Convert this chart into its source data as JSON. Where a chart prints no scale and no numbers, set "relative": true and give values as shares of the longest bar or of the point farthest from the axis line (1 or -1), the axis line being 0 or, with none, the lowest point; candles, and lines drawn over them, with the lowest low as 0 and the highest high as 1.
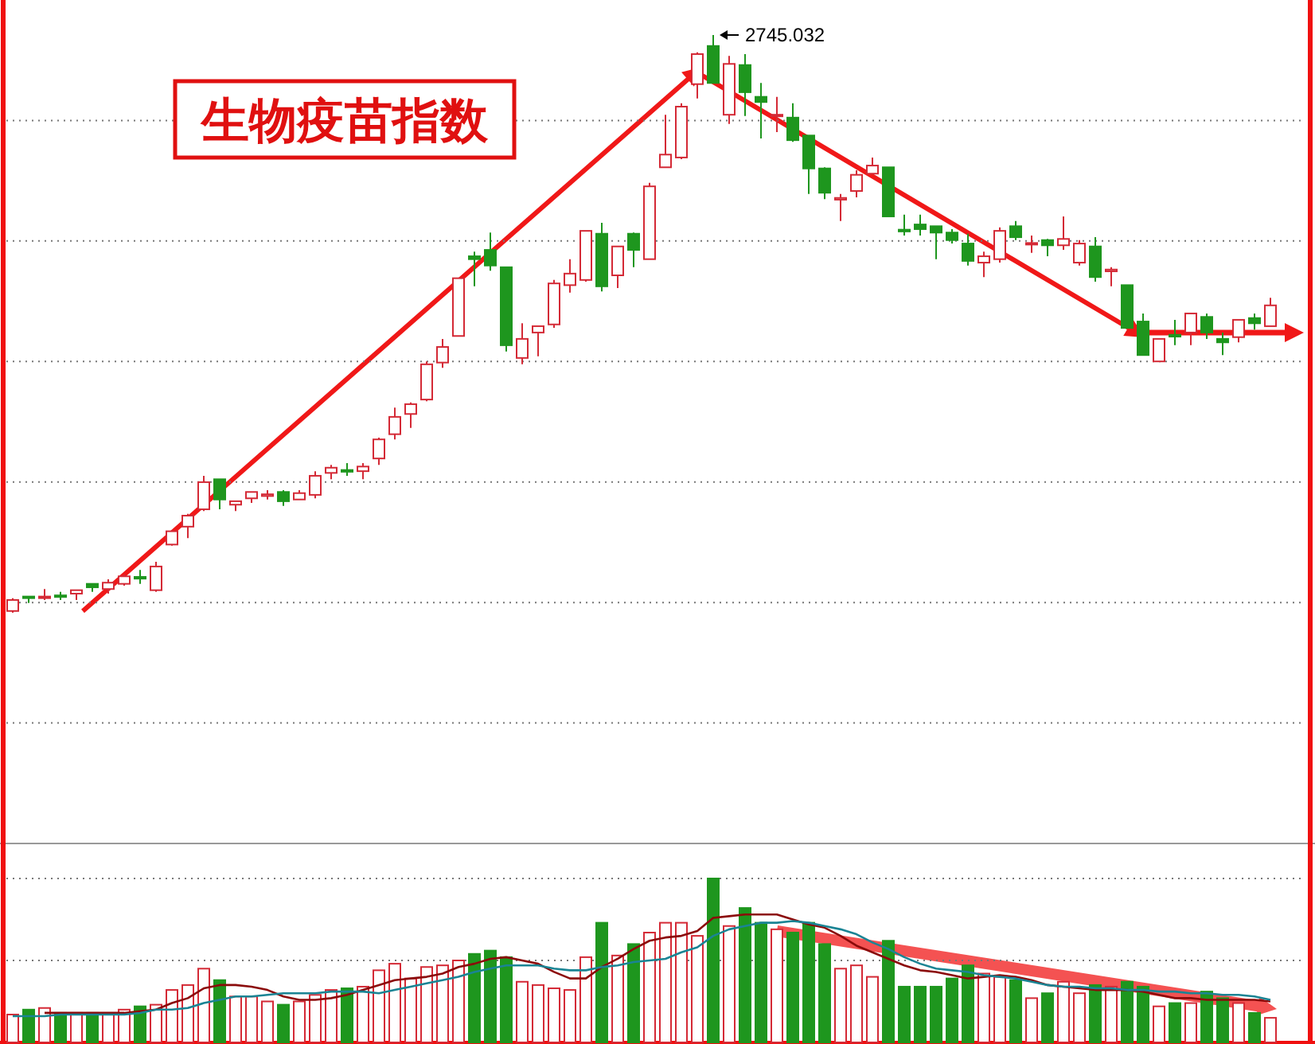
{
  "chart_data": [
    {
      "type": "candlestick",
      "title": "生物疫苗指数",
      "relative": true,
      "grid": true,
      "categories": [
        null,
        null,
        null,
        null,
        null,
        null,
        null,
        null,
        null,
        null,
        null,
        null,
        null,
        null,
        null,
        null,
        null,
        null,
        null,
        null,
        null,
        null,
        null,
        null,
        null,
        null,
        null,
        null,
        null,
        null,
        null,
        null,
        null,
        null,
        null,
        null,
        null,
        null,
        null,
        null,
        null,
        null,
        null,
        null,
        null,
        null,
        null,
        null,
        null,
        null,
        null,
        null,
        null,
        null,
        null,
        null,
        null,
        null,
        null,
        null,
        null,
        null,
        null,
        null,
        null,
        null,
        null,
        null,
        null,
        null,
        null,
        null,
        null,
        null,
        null,
        null,
        null,
        null,
        null,
        null
      ],
      "ohlc": [
        [
          0.003,
          0.025,
          0,
          0.022
        ],
        [
          0.028,
          0.028,
          0.017,
          0.028
        ],
        [
          0.026,
          0.041,
          0.022,
          0.028
        ],
        [
          0.03,
          0.036,
          0.022,
          0.028
        ],
        [
          0.033,
          0.039,
          0.022,
          0.039
        ],
        [
          0.05,
          0.05,
          0.036,
          0.044
        ],
        [
          0.041,
          0.058,
          0.033,
          0.052
        ],
        [
          0.05,
          0.066,
          0.047,
          0.063
        ],
        [
          0.062,
          0.074,
          0.05,
          0.059
        ],
        [
          0.039,
          0.088,
          0.036,
          0.08
        ],
        [
          0.118,
          0.143,
          0.116,
          0.141
        ],
        [
          0.149,
          0.171,
          0.129,
          0.168
        ],
        [
          0.179,
          0.237,
          0.176,
          0.226
        ],
        [
          0.231,
          0.231,
          0.179,
          0.196
        ],
        [
          0.187,
          0.193,
          0.176,
          0.193
        ],
        [
          0.198,
          0.209,
          0.19,
          0.209
        ],
        [
          0.202,
          0.212,
          0.196,
          0.205
        ],
        [
          0.209,
          0.212,
          0.185,
          0.193
        ],
        [
          0.196,
          0.212,
          0.196,
          0.207
        ],
        [
          0.204,
          0.245,
          0.198,
          0.237
        ],
        [
          0.242,
          0.256,
          0.231,
          0.251
        ],
        [
          0.247,
          0.259,
          0.237,
          0.244
        ],
        [
          0.245,
          0.259,
          0.231,
          0.253
        ],
        [
          0.267,
          0.303,
          0.256,
          0.3
        ],
        [
          0.309,
          0.355,
          0.3,
          0.339
        ],
        [
          0.344,
          0.364,
          0.32,
          0.361
        ],
        [
          0.369,
          0.435,
          0.366,
          0.43
        ],
        [
          0.433,
          0.474,
          0.424,
          0.46
        ],
        [
          0.479,
          0.579,
          0.479,
          0.579
        ],
        [
          0.617,
          0.625,
          0.565,
          0.612
        ],
        [
          0.628,
          0.658,
          0.592,
          0.601
        ],
        [
          0.598,
          0.598,
          0.452,
          0.463
        ],
        [
          0.441,
          0.501,
          0.43,
          0.474
        ],
        [
          0.485,
          0.496,
          0.444,
          0.496
        ],
        [
          0.499,
          0.576,
          0.493,
          0.57
        ],
        [
          0.567,
          0.612,
          0.554,
          0.587
        ],
        [
          0.576,
          0.661,
          0.573,
          0.661
        ],
        [
          0.656,
          0.675,
          0.556,
          0.565
        ],
        [
          0.584,
          0.634,
          0.562,
          0.634
        ],
        [
          0.656,
          0.658,
          0.598,
          0.628
        ],
        [
          0.612,
          0.744,
          0.612,
          0.738
        ],
        [
          0.771,
          0.862,
          0.771,
          0.793
        ],
        [
          0.788,
          0.882,
          0.785,
          0.876
        ],
        [
          0.915,
          0.97,
          0.89,
          0.967
        ],
        [
          0.981,
          1,
          0.917,
          0.917
        ],
        [
          0.862,
          0.964,
          0.846,
          0.95
        ],
        [
          0.948,
          0.967,
          0.86,
          0.901
        ],
        [
          0.893,
          0.917,
          0.821,
          0.884
        ],
        [
          0.861,
          0.893,
          0.832,
          0.862
        ],
        [
          0.857,
          0.882,
          0.815,
          0.818
        ],
        [
          0.826,
          0.826,
          0.725,
          0.769
        ],
        [
          0.769,
          0.771,
          0.716,
          0.727
        ],
        [
          0.715,
          0.725,
          0.678,
          0.718
        ],
        [
          0.73,
          0.766,
          0.719,
          0.758
        ],
        [
          0.76,
          0.788,
          0.76,
          0.774
        ],
        [
          0.771,
          0.771,
          0.686,
          0.686
        ],
        [
          0.663,
          0.689,
          0.653,
          0.66
        ],
        [
          0.672,
          0.689,
          0.653,
          0.664
        ],
        [
          0.669,
          0.669,
          0.612,
          0.658
        ],
        [
          0.658,
          0.664,
          0.639,
          0.645
        ],
        [
          0.639,
          0.656,
          0.601,
          0.609
        ],
        [
          0.606,
          0.625,
          0.581,
          0.617
        ],
        [
          0.612,
          0.667,
          0.606,
          0.661
        ],
        [
          0.669,
          0.678,
          0.645,
          0.65
        ],
        [
          0.638,
          0.653,
          0.623,
          0.64
        ],
        [
          0.645,
          0.647,
          0.617,
          0.636
        ],
        [
          0.636,
          0.686,
          0.628,
          0.647
        ],
        [
          0.606,
          0.645,
          0.601,
          0.639
        ],
        [
          0.634,
          0.65,
          0.573,
          0.581
        ],
        [
          0.591,
          0.598,
          0.565,
          0.594
        ],
        [
          0.567,
          0.567,
          0.493,
          0.493
        ],
        [
          0.504,
          0.518,
          0.446,
          0.446
        ],
        [
          0.435,
          0.474,
          0.435,
          0.474
        ],
        [
          0.481,
          0.507,
          0.463,
          0.478
        ],
        [
          0.485,
          0.518,
          0.463,
          0.518
        ],
        [
          0.512,
          0.518,
          0.474,
          0.485
        ],
        [
          0.474,
          0.485,
          0.446,
          0.468
        ],
        [
          0.477,
          0.507,
          0.468,
          0.507
        ],
        [
          0.51,
          0.518,
          0.49,
          0.501
        ],
        [
          0.496,
          0.545,
          0.496,
          0.532
        ]
      ],
      "colors": [
        "#d42a36",
        "#1e961e",
        "#d42a36",
        "#1e961e",
        "#d42a36",
        "#1e961e",
        "#d42a36",
        "#d42a36",
        "#1e961e",
        "#d42a36",
        "#d42a36",
        "#d42a36",
        "#d42a36",
        "#1e961e",
        "#d42a36",
        "#d42a36",
        "#d42a36",
        "#1e961e",
        "#d42a36",
        "#d42a36",
        "#d42a36",
        "#1e961e",
        "#d42a36",
        "#d42a36",
        "#d42a36",
        "#d42a36",
        "#d42a36",
        "#d42a36",
        "#d42a36",
        "#1e961e",
        "#1e961e",
        "#1e961e",
        "#d42a36",
        "#d42a36",
        "#d42a36",
        "#d42a36",
        "#d42a36",
        "#1e961e",
        "#d42a36",
        "#1e961e",
        "#d42a36",
        "#d42a36",
        "#d42a36",
        "#d42a36",
        "#1e961e",
        "#d42a36",
        "#1e961e",
        "#1e961e",
        "#d42a36",
        "#1e961e",
        "#1e961e",
        "#1e961e",
        "#d42a36",
        "#d42a36",
        "#d42a36",
        "#1e961e",
        "#1e961e",
        "#1e961e",
        "#1e961e",
        "#1e961e",
        "#1e961e",
        "#d42a36",
        "#d42a36",
        "#1e961e",
        "#d42a36",
        "#1e961e",
        "#d42a36",
        "#d42a36",
        "#1e961e",
        "#d42a36",
        "#1e961e",
        "#1e961e",
        "#d42a36",
        "#1e961e",
        "#d42a36",
        "#1e961e",
        "#1e961e",
        "#d42a36",
        "#1e961e",
        "#d42a36"
      ],
      "annotations": [
        "2745.032"
      ]
    },
    {
      "type": "bar",
      "relative": true,
      "ref_lines": [
        {
          "axis": "y",
          "value": 0.5,
          "color": "#777777",
          "line_style": "dotted"
        },
        {
          "axis": "y",
          "value": 1,
          "color": "#777777",
          "line_style": "dotted"
        }
      ],
      "categories": [
        null,
        null,
        null,
        null,
        null,
        null,
        null,
        null,
        null,
        null,
        null,
        null,
        null,
        null,
        null,
        null,
        null,
        null,
        null,
        null,
        null,
        null,
        null,
        null,
        null,
        null,
        null,
        null,
        null,
        null,
        null,
        null,
        null,
        null,
        null,
        null,
        null,
        null,
        null,
        null,
        null,
        null,
        null,
        null,
        null,
        null,
        null,
        null,
        null,
        null,
        null,
        null,
        null,
        null,
        null,
        null,
        null,
        null,
        null,
        null,
        null,
        null,
        null,
        null,
        null,
        null,
        null,
        null,
        null,
        null,
        null,
        null,
        null,
        null,
        null,
        null,
        null,
        null,
        null,
        null
      ],
      "series": [
        {
          "type": "bar",
          "colors": [
            "#d42a36",
            "#1e961e",
            "#d42a36",
            "#1e961e",
            "#d42a36",
            "#1e961e",
            "#d42a36",
            "#d42a36",
            "#1e961e",
            "#d42a36",
            "#d42a36",
            "#d42a36",
            "#d42a36",
            "#1e961e",
            "#d42a36",
            "#d42a36",
            "#d42a36",
            "#1e961e",
            "#d42a36",
            "#d42a36",
            "#d42a36",
            "#1e961e",
            "#d42a36",
            "#d42a36",
            "#d42a36",
            "#d42a36",
            "#d42a36",
            "#d42a36",
            "#d42a36",
            "#1e961e",
            "#1e961e",
            "#1e961e",
            "#d42a36",
            "#d42a36",
            "#d42a36",
            "#d42a36",
            "#d42a36",
            "#1e961e",
            "#d42a36",
            "#1e961e",
            "#d42a36",
            "#d42a36",
            "#d42a36",
            "#d42a36",
            "#1e961e",
            "#d42a36",
            "#1e961e",
            "#1e961e",
            "#d42a36",
            "#1e961e",
            "#1e961e",
            "#1e961e",
            "#d42a36",
            "#d42a36",
            "#d42a36",
            "#1e961e",
            "#1e961e",
            "#1e961e",
            "#1e961e",
            "#1e961e",
            "#1e961e",
            "#d42a36",
            "#d42a36",
            "#1e961e",
            "#d42a36",
            "#1e961e",
            "#d42a36",
            "#d42a36",
            "#1e961e",
            "#d42a36",
            "#1e961e",
            "#1e961e",
            "#d42a36",
            "#1e961e",
            "#d42a36",
            "#1e961e",
            "#1e961e",
            "#d42a36",
            "#1e961e",
            "#d42a36"
          ],
          "values": [
            0.17,
            0.2,
            0.21,
            0.18,
            0.18,
            0.18,
            0.17,
            0.2,
            0.22,
            0.23,
            0.32,
            0.35,
            0.45,
            0.38,
            0.28,
            0.28,
            0.25,
            0.23,
            0.25,
            0.29,
            0.32,
            0.33,
            0.34,
            0.44,
            0.48,
            0.39,
            0.46,
            0.47,
            0.5,
            0.54,
            0.56,
            0.52,
            0.37,
            0.35,
            0.33,
            0.32,
            0.52,
            0.73,
            0.53,
            0.6,
            0.67,
            0.73,
            0.73,
            0.65,
            1,
            0.71,
            0.82,
            0.73,
            0.69,
            0.67,
            0.73,
            0.6,
            0.45,
            0.47,
            0.4,
            0.62,
            0.34,
            0.34,
            0.34,
            0.39,
            0.47,
            0.42,
            0.4,
            0.38,
            0.27,
            0.3,
            0.37,
            0.3,
            0.35,
            0.34,
            0.37,
            0.34,
            0.22,
            0.24,
            0.24,
            0.31,
            0.27,
            0.24,
            0.18,
            0.15
          ]
        },
        {
          "type": "line",
          "color": "#8b0a0a",
          "values": [
            null,
            null,
            0.18,
            0.18,
            0.18,
            0.18,
            0.18,
            0.18,
            0.19,
            0.2,
            0.24,
            0.27,
            0.33,
            0.35,
            0.35,
            0.34,
            0.32,
            0.28,
            0.26,
            0.26,
            0.27,
            0.29,
            0.32,
            0.35,
            0.38,
            0.39,
            0.4,
            0.42,
            0.46,
            0.48,
            0.51,
            0.52,
            0.5,
            0.48,
            0.43,
            0.39,
            0.39,
            0.46,
            0.51,
            0.57,
            0.62,
            0.64,
            0.65,
            0.68,
            0.76,
            0.77,
            0.78,
            0.78,
            0.78,
            0.75,
            0.72,
            0.7,
            0.65,
            0.59,
            0.55,
            0.51,
            0.47,
            0.44,
            0.43,
            0.41,
            0.39,
            0.4,
            0.41,
            0.4,
            0.38,
            0.35,
            0.34,
            0.33,
            0.32,
            0.32,
            0.32,
            0.31,
            0.29,
            0.27,
            0.27,
            0.26,
            0.26,
            0.26,
            0.26,
            0.25
          ]
        },
        {
          "type": "line",
          "color": "#1a8494",
          "values": [
            0.16,
            0.16,
            0.16,
            0.17,
            0.17,
            0.17,
            0.17,
            0.17,
            0.18,
            0.2,
            0.2,
            0.21,
            0.24,
            0.26,
            0.28,
            0.28,
            0.29,
            0.3,
            0.3,
            0.3,
            0.31,
            0.31,
            0.31,
            0.3,
            0.32,
            0.34,
            0.36,
            0.38,
            0.4,
            0.43,
            0.45,
            0.47,
            0.47,
            0.47,
            0.45,
            0.44,
            0.44,
            0.46,
            0.47,
            0.49,
            0.5,
            0.51,
            0.55,
            0.58,
            0.65,
            0.69,
            0.71,
            0.73,
            0.73,
            0.74,
            0.73,
            0.71,
            0.69,
            0.66,
            0.61,
            0.57,
            0.52,
            0.48,
            0.45,
            0.44,
            0.43,
            0.41,
            0.4,
            0.39,
            0.37,
            0.35,
            0.34,
            0.34,
            0.33,
            0.33,
            0.32,
            0.32,
            0.31,
            0.31,
            0.3,
            0.3,
            0.29,
            0.29,
            0.28,
            0.26
          ]
        }
      ]
    }
  ]
}
